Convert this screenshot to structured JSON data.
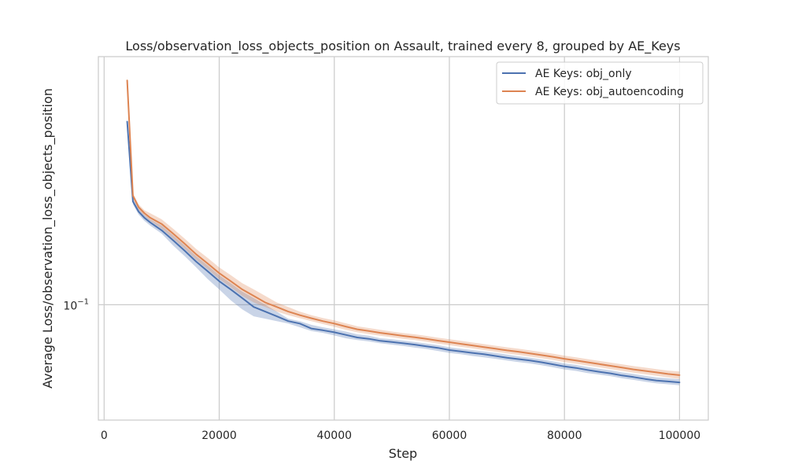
{
  "chart_data": {
    "type": "line",
    "title": "Loss/observation_loss_objects_position on Assault, trained every 8, grouped by AE_Keys",
    "xlabel": "Step",
    "ylabel": "Average Loss/observation_loss_objects_position",
    "xlim": [
      -1000,
      105000
    ],
    "xticks": [
      0,
      20000,
      40000,
      60000,
      80000,
      100000
    ],
    "xtick_labels": [
      "0",
      "20000",
      "40000",
      "60000",
      "80000",
      "100000"
    ],
    "yscale": "log",
    "ylim": [
      0.06,
      0.3
    ],
    "yticks": [
      0.1
    ],
    "ytick_labels": [
      "10^{-1}"
    ],
    "ytick_label_base": "10",
    "ytick_label_exp": "−1",
    "grid": true,
    "legend": {
      "position": "top-right"
    },
    "series": [
      {
        "name": "AE Keys: obj_only",
        "color": "#4c72b0",
        "x": [
          4000,
          5000,
          6000,
          7000,
          8000,
          10000,
          12000,
          14000,
          16000,
          18000,
          20000,
          22000,
          24000,
          26000,
          28000,
          30000,
          32000,
          34000,
          36000,
          38000,
          40000,
          42000,
          44000,
          46000,
          48000,
          50000,
          52000,
          54000,
          56000,
          58000,
          60000,
          62000,
          64000,
          66000,
          68000,
          70000,
          72000,
          74000,
          76000,
          78000,
          80000,
          82000,
          84000,
          86000,
          88000,
          90000,
          92000,
          94000,
          96000,
          98000,
          100000
        ],
        "y": [
          0.225,
          0.158,
          0.151,
          0.147,
          0.144,
          0.139,
          0.133,
          0.127,
          0.121,
          0.116,
          0.111,
          0.107,
          0.103,
          0.099,
          0.097,
          0.095,
          0.093,
          0.092,
          0.09,
          0.0893,
          0.0885,
          0.0875,
          0.0865,
          0.086,
          0.0852,
          0.0848,
          0.0843,
          0.0838,
          0.0832,
          0.0826,
          0.0818,
          0.0813,
          0.0808,
          0.0803,
          0.0797,
          0.0791,
          0.0786,
          0.0781,
          0.0775,
          0.0768,
          0.0761,
          0.0756,
          0.0749,
          0.0743,
          0.0738,
          0.0731,
          0.0726,
          0.072,
          0.0715,
          0.0712,
          0.0709
        ],
        "band_low": [
          0.222,
          0.156,
          0.149,
          0.145,
          0.142,
          0.137,
          0.13,
          0.124,
          0.118,
          0.112,
          0.107,
          0.102,
          0.098,
          0.095,
          0.094,
          0.093,
          0.092,
          0.0905,
          0.089,
          0.0883,
          0.0873,
          0.0862,
          0.0855,
          0.085,
          0.0843,
          0.0838,
          0.0833,
          0.0827,
          0.0822,
          0.0815,
          0.0808,
          0.0803,
          0.0797,
          0.0792,
          0.0787,
          0.0781,
          0.0776,
          0.0771,
          0.0765,
          0.0758,
          0.0751,
          0.0746,
          0.0739,
          0.0734,
          0.0729,
          0.0722,
          0.0717,
          0.0711,
          0.0706,
          0.0703,
          0.07
        ],
        "band_high": [
          0.228,
          0.16,
          0.153,
          0.149,
          0.146,
          0.142,
          0.136,
          0.13,
          0.124,
          0.119,
          0.114,
          0.11,
          0.106,
          0.103,
          0.1,
          0.097,
          0.094,
          0.093,
          0.0915,
          0.0905,
          0.0897,
          0.0888,
          0.0877,
          0.0872,
          0.0862,
          0.0858,
          0.0853,
          0.0848,
          0.0842,
          0.0836,
          0.0828,
          0.0823,
          0.0818,
          0.0813,
          0.0808,
          0.0802,
          0.0796,
          0.0791,
          0.0785,
          0.0778,
          0.0771,
          0.0766,
          0.0759,
          0.0753,
          0.0748,
          0.0741,
          0.0736,
          0.073,
          0.0725,
          0.0722,
          0.0719
        ]
      },
      {
        "name": "AE Keys: obj_autoencoding",
        "color": "#dd8452",
        "x": [
          4000,
          5000,
          6000,
          7000,
          8000,
          10000,
          12000,
          14000,
          16000,
          18000,
          20000,
          22000,
          24000,
          26000,
          28000,
          30000,
          32000,
          34000,
          36000,
          38000,
          40000,
          42000,
          44000,
          46000,
          48000,
          50000,
          52000,
          54000,
          56000,
          58000,
          60000,
          62000,
          64000,
          66000,
          68000,
          70000,
          72000,
          74000,
          76000,
          78000,
          80000,
          82000,
          84000,
          86000,
          88000,
          90000,
          92000,
          94000,
          96000,
          98000,
          100000
        ],
        "y": [
          0.27,
          0.162,
          0.154,
          0.15,
          0.147,
          0.143,
          0.137,
          0.131,
          0.125,
          0.12,
          0.115,
          0.111,
          0.107,
          0.104,
          0.101,
          0.099,
          0.097,
          0.0955,
          0.0942,
          0.093,
          0.092,
          0.0908,
          0.0897,
          0.089,
          0.0883,
          0.0877,
          0.0871,
          0.0866,
          0.086,
          0.0853,
          0.0847,
          0.0841,
          0.0835,
          0.0829,
          0.0823,
          0.0817,
          0.0812,
          0.0806,
          0.08,
          0.0794,
          0.0787,
          0.0781,
          0.0775,
          0.0769,
          0.0763,
          0.0757,
          0.0751,
          0.0746,
          0.0741,
          0.0736,
          0.0732
        ],
        "band_low": [
          0.268,
          0.16,
          0.152,
          0.148,
          0.145,
          0.14,
          0.134,
          0.128,
          0.122,
          0.117,
          0.112,
          0.108,
          0.104,
          0.101,
          0.099,
          0.097,
          0.0955,
          0.0942,
          0.093,
          0.0918,
          0.0907,
          0.0895,
          0.0885,
          0.0878,
          0.0872,
          0.0866,
          0.086,
          0.0855,
          0.0849,
          0.0842,
          0.0836,
          0.083,
          0.0824,
          0.0818,
          0.0812,
          0.0806,
          0.0801,
          0.0795,
          0.0789,
          0.0783,
          0.0776,
          0.077,
          0.0764,
          0.0758,
          0.0752,
          0.0746,
          0.074,
          0.0735,
          0.073,
          0.0725,
          0.072
        ],
        "band_high": [
          0.272,
          0.164,
          0.156,
          0.152,
          0.15,
          0.146,
          0.14,
          0.134,
          0.128,
          0.123,
          0.118,
          0.114,
          0.11,
          0.107,
          0.104,
          0.101,
          0.099,
          0.097,
          0.0955,
          0.0943,
          0.0933,
          0.0921,
          0.0909,
          0.0902,
          0.0895,
          0.0888,
          0.0882,
          0.0877,
          0.0871,
          0.0864,
          0.0858,
          0.0852,
          0.0846,
          0.084,
          0.0834,
          0.0828,
          0.0823,
          0.0817,
          0.0811,
          0.0805,
          0.0798,
          0.0792,
          0.0786,
          0.078,
          0.0774,
          0.0768,
          0.0762,
          0.0757,
          0.0752,
          0.0747,
          0.0744
        ]
      }
    ]
  }
}
